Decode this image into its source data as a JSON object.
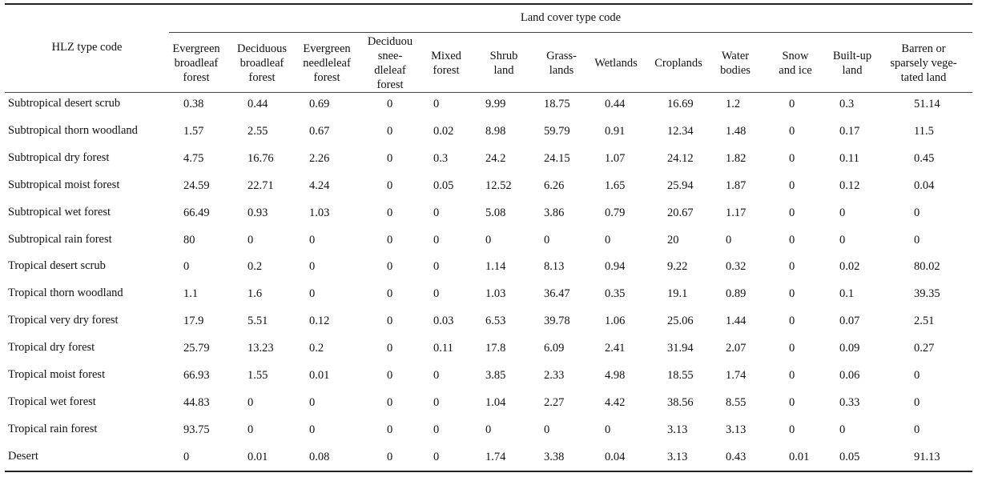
{
  "table": {
    "group_header": "Land cover type code",
    "row_header": "HLZ type code",
    "columns": [
      [
        "Evergreen",
        "broadleaf",
        "forest"
      ],
      [
        "Deciduous",
        "broadleaf",
        "forest"
      ],
      [
        "Evergreen",
        "needleleaf",
        "forest"
      ],
      [
        "Deciduou",
        "snee-",
        "dleleaf",
        "forest"
      ],
      [
        "Mixed",
        "forest"
      ],
      [
        "Shrub",
        "land"
      ],
      [
        "Grass-",
        "lands"
      ],
      [
        "Wetlands"
      ],
      [
        "Croplands"
      ],
      [
        "Water",
        "bodies"
      ],
      [
        "Snow",
        "and ice"
      ],
      [
        "Built-up",
        "land"
      ],
      [
        "Barren or",
        "sparsely vege-",
        "tated land"
      ]
    ],
    "rows": [
      {
        "label": "Subtropical desert scrub",
        "values": [
          "0.38",
          "0.44",
          "0.69",
          "0",
          "0",
          "9.99",
          "18.75",
          "0.44",
          "16.69",
          "1.2",
          "0",
          "0.3",
          "51.14"
        ]
      },
      {
        "label": "Subtropical thorn woodland",
        "values": [
          "1.57",
          "2.55",
          "0.67",
          "0",
          "0.02",
          "8.98",
          "59.79",
          "0.91",
          "12.34",
          "1.48",
          "0",
          "0.17",
          "11.5"
        ]
      },
      {
        "label": "Subtropical dry forest",
        "values": [
          "4.75",
          "16.76",
          "2.26",
          "0",
          "0.3",
          "24.2",
          "24.15",
          "1.07",
          "24.12",
          "1.82",
          "0",
          "0.11",
          "0.45"
        ]
      },
      {
        "label": "Subtropical moist forest",
        "values": [
          "24.59",
          "22.71",
          "4.24",
          "0",
          "0.05",
          "12.52",
          "6.26",
          "1.65",
          "25.94",
          "1.87",
          "0",
          "0.12",
          "0.04"
        ]
      },
      {
        "label": "Subtropical wet forest",
        "values": [
          "66.49",
          "0.93",
          "1.03",
          "0",
          "0",
          "5.08",
          "3.86",
          "0.79",
          "20.67",
          "1.17",
          "0",
          "0",
          "0"
        ]
      },
      {
        "label": "Subtropical rain forest",
        "values": [
          "80",
          "0",
          "0",
          "0",
          "0",
          "0",
          "0",
          "0",
          "20",
          "0",
          "0",
          "0",
          "0"
        ]
      },
      {
        "label": "Tropical desert scrub",
        "values": [
          "0",
          "0.2",
          "0",
          "0",
          "0",
          "1.14",
          "8.13",
          "0.94",
          "9.22",
          "0.32",
          "0",
          "0.02",
          "80.02"
        ]
      },
      {
        "label": "Tropical thorn woodland",
        "values": [
          "1.1",
          "1.6",
          "0",
          "0",
          "0",
          "1.03",
          "36.47",
          "0.35",
          "19.1",
          "0.89",
          "0",
          "0.1",
          "39.35"
        ]
      },
      {
        "label": "Tropical very dry forest",
        "values": [
          "17.9",
          "5.51",
          "0.12",
          "0",
          "0.03",
          "6.53",
          "39.78",
          "1.06",
          "25.06",
          "1.44",
          "0",
          "0.07",
          "2.51"
        ]
      },
      {
        "label": "Tropical dry forest",
        "values": [
          "25.79",
          "13.23",
          "0.2",
          "0",
          "0.11",
          "17.8",
          "6.09",
          "2.41",
          "31.94",
          "2.07",
          "0",
          "0.09",
          "0.27"
        ]
      },
      {
        "label": "Tropical moist forest",
        "values": [
          "66.93",
          "1.55",
          "0.01",
          "0",
          "0",
          "3.85",
          "2.33",
          "4.98",
          "18.55",
          "1.74",
          "0",
          "0.06",
          "0"
        ]
      },
      {
        "label": "Tropical wet forest",
        "values": [
          "44.83",
          "0",
          "0",
          "0",
          "0",
          "1.04",
          "2.27",
          "4.42",
          "38.56",
          "8.55",
          "0",
          "0.33",
          "0"
        ]
      },
      {
        "label": "Tropical rain forest",
        "values": [
          "93.75",
          "0",
          "0",
          "0",
          "0",
          "0",
          "0",
          "0",
          "3.13",
          "3.13",
          "0",
          "0",
          "0"
        ]
      },
      {
        "label": "Desert",
        "values": [
          "0",
          "0.01",
          "0.08",
          "0",
          "0",
          "1.74",
          "3.38",
          "0.04",
          "3.13",
          "0.43",
          "0.01",
          "0.05",
          "91.13"
        ]
      }
    ]
  }
}
